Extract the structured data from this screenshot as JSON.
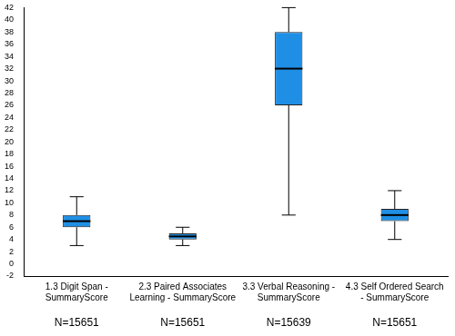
{
  "chart_data": {
    "type": "box",
    "categories": [
      "1.3 Digit Span - SummaryScore",
      "2.3 Paired Associates Learning - SummaryScore",
      "3.3 Verbal Reasoning - SummaryScore",
      "4.3 Self Ordered Search - SummaryScore"
    ],
    "boxes": [
      {
        "min": 3,
        "q1": 6,
        "median": 7,
        "q3": 8,
        "max": 11
      },
      {
        "min": 3,
        "q1": 4,
        "median": 4.5,
        "q3": 5,
        "max": 6
      },
      {
        "min": 8,
        "q1": 26,
        "median": 32,
        "q3": 38,
        "max": 42
      },
      {
        "min": 4,
        "q1": 7,
        "median": 8,
        "q3": 9,
        "max": 12
      }
    ],
    "n_labels": [
      "N=15651",
      "N=15651",
      "N=15639",
      "N=15651"
    ],
    "color": "#1f8fe6",
    "ylim": [
      -2,
      42
    ],
    "yticks": [
      -2,
      0,
      2,
      4,
      6,
      8,
      10,
      12,
      14,
      16,
      18,
      20,
      22,
      24,
      26,
      28,
      30,
      32,
      34,
      36,
      38,
      40,
      42
    ],
    "grid": false
  }
}
